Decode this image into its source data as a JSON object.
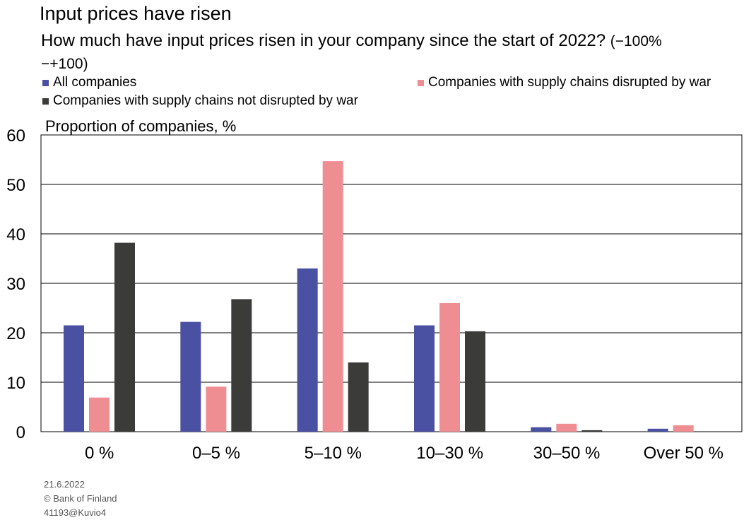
{
  "header": {
    "title": "Input prices have risen",
    "subtitle": "How much have input prices risen in your company since the start of 2022?",
    "subtitle_range": "(−100%−+100)"
  },
  "legend": {
    "items": [
      {
        "label": "All companies",
        "color": "#4a50a2"
      },
      {
        "label": "Companies with supply chains disrupted by war",
        "color": "#ef8e92"
      },
      {
        "label": "Companies with supply chains not disrupted by war",
        "color": "#3b3b39"
      }
    ]
  },
  "chart_data": {
    "type": "bar",
    "title": "Input prices have risen",
    "ylabel": "Proportion of companies, %",
    "xlabel": "",
    "ylim": [
      0,
      60
    ],
    "yticks": [
      0,
      10,
      20,
      30,
      40,
      50,
      60
    ],
    "grid": true,
    "categories": [
      "0 %",
      "0–5 %",
      "5–10 %",
      "10–30 %",
      "30–50 %",
      "Over 50 %"
    ],
    "series": [
      {
        "name": "All companies",
        "color": "#4a50a2",
        "values": [
          21.5,
          22.2,
          33.0,
          21.5,
          0.9,
          0.6
        ]
      },
      {
        "name": "Companies with supply chains disrupted by war",
        "color": "#ef8e92",
        "values": [
          6.9,
          9.1,
          54.7,
          26.0,
          1.6,
          1.3
        ]
      },
      {
        "name": "Companies with supply chains not disrupted by war",
        "color": "#3b3b39",
        "values": [
          38.2,
          26.8,
          14.0,
          20.3,
          0.3,
          0.0
        ]
      }
    ]
  },
  "footer": {
    "date": "21.6.2022",
    "copyright": "© Bank of Finland",
    "code": "41193@Kuvio4"
  }
}
